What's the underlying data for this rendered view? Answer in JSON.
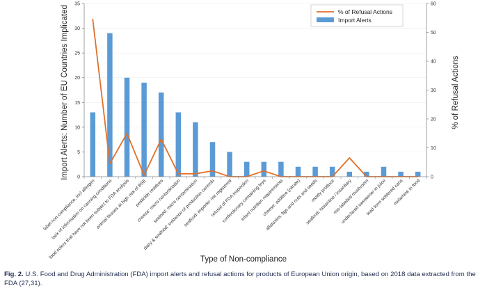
{
  "chart_data": {
    "type": "bar+line",
    "xlabel": "Type of Non-compliance",
    "ylabel_left": "Import Alerts: Number of EU Countries Implicated",
    "ylabel_right": "% of Refusal Actions",
    "ylim_left": [
      0,
      35
    ],
    "ylim_right": [
      0,
      60
    ],
    "yticks_left": [
      "0",
      "5",
      "10",
      "15",
      "20",
      "25",
      "30",
      "35"
    ],
    "yticks_right": [
      "0",
      "10",
      "20",
      "30",
      "40",
      "50",
      "60"
    ],
    "legend_position": "top-right",
    "categories": [
      "label non-compliance, incl allergen",
      "lack of information on canning conditions",
      "food colors that have not been subject to FDA analysis",
      "animal tissues at high risk of BSE",
      "pesticide residues",
      "cheese: micro contamination",
      "seafood: micro contamination",
      "dairy & seafood: evidence of production controls",
      "seafood: importer not registered",
      "refusal of FDA inspection",
      "confectionary containing toys",
      "infant nutrition requirements",
      "cheese: additive (nitrate)",
      "aflatoxins: figs and nuts and seeds",
      "moldy produce",
      "seafood: histamine / insanitary",
      "mis-labelled mushroom",
      "undeclared sweetener in juice",
      "lead form soldered cans",
      "melamine in food"
    ],
    "series": [
      {
        "name": "Import Alerts",
        "type": "bar",
        "axis": "left",
        "color": "#5b9bd5",
        "values": [
          13,
          29,
          20,
          19,
          17,
          13,
          11,
          7,
          5,
          3,
          3,
          3,
          2,
          2,
          2,
          1,
          1,
          2,
          1,
          1
        ]
      },
      {
        "name": "% of Refusal Actions",
        "type": "line",
        "axis": "right",
        "color": "#e0702c",
        "values": [
          54.5,
          4.5,
          15,
          0.5,
          13,
          1,
          1,
          2,
          0,
          0,
          2,
          0,
          0,
          0,
          0,
          6.5,
          0,
          0,
          0,
          0
        ]
      }
    ]
  },
  "caption": {
    "label": "Fig. 2.",
    "text": "U.S. Food and Drug Administration (FDA) import alerts and refusal actions for products of European Union origin, based on 2018 data extracted from the FDA (27,31)."
  }
}
